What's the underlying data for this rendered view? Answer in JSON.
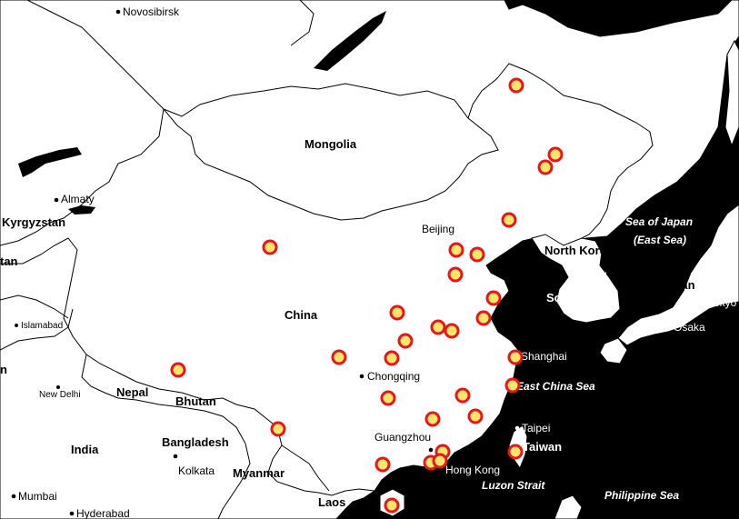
{
  "map": {
    "colors": {
      "land": "#ffffff",
      "sea": "#000000",
      "border": "#000000",
      "marker_fill": "#ffe66b",
      "marker_stroke": "#e8151b"
    },
    "countries": {
      "mongolia": "Mongolia",
      "china": "China",
      "kyrgyzstan": "Kyrgyzstan",
      "tan_partial": "tan",
      "nepal": "Nepal",
      "bhutan": "Bhutan",
      "bangladesh": "Bangladesh",
      "india": "India",
      "myanmar": "Myanmar",
      "laos": "Laos",
      "north_korea": "North Korea",
      "south_korea": "South Korea",
      "japan": "Japan",
      "taiwan": "Taiwan",
      "edge_n": "n"
    },
    "cities": {
      "novosibirsk": "Novosibirsk",
      "almaty": "Almaty",
      "islamabad": "Islamabad",
      "new_delhi": "New Delhi",
      "kolkata": "Kolkata",
      "mumbai": "Mumbai",
      "hyderabad": "Hyderabad",
      "beijing": "Beijing",
      "chongqing": "Chongqing",
      "guangzhou": "Guangzhou",
      "hong_kong": "Hong Kong",
      "shanghai": "Shanghai",
      "taipei": "Taipei",
      "seoul": "Seoul",
      "tokyo": "Tokyo",
      "osaka": "Osaka"
    },
    "seas": {
      "sea_of_japan_1": "Sea of Japan",
      "sea_of_japan_2": "(East Sea)",
      "east_china_sea": "East China Sea",
      "luzon_strait": "Luzon Strait",
      "philippine_sea": "Philippine Sea"
    }
  }
}
